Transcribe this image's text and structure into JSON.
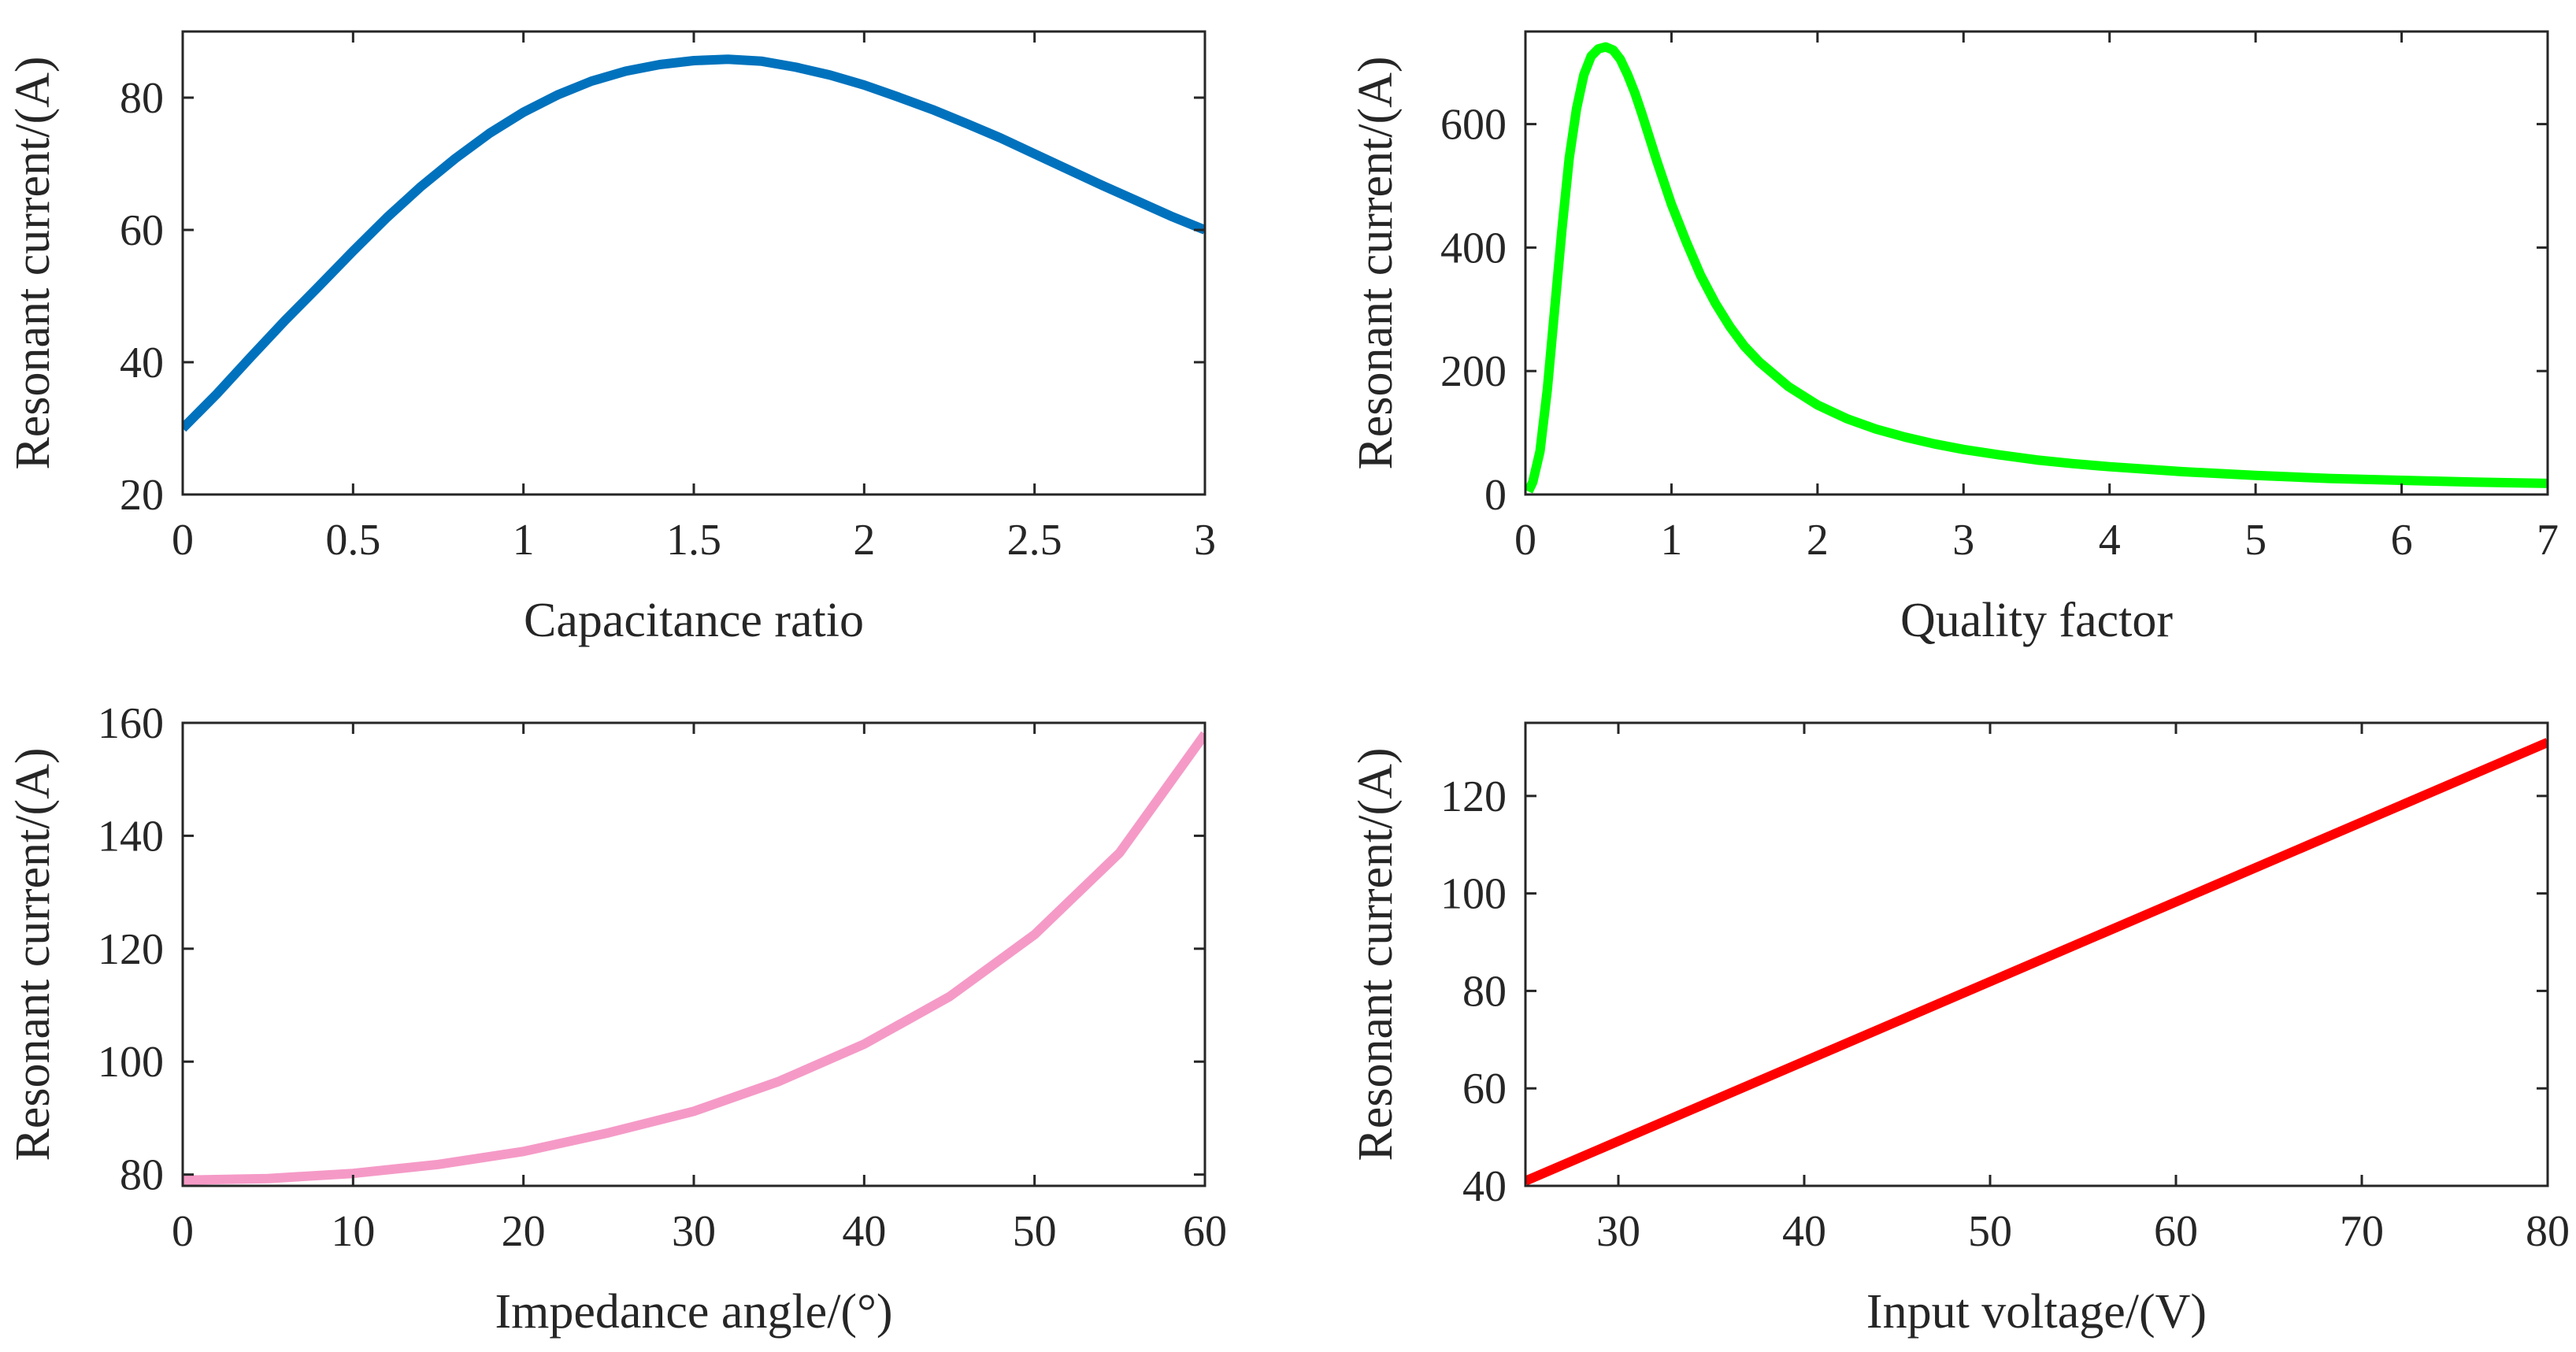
{
  "chart_data": [
    {
      "id": "capacitance",
      "type": "line",
      "title": "",
      "xlabel": "Capacitance ratio",
      "ylabel": "Resonant current/(A)",
      "xlim": [
        0,
        3
      ],
      "ylim": [
        20,
        90
      ],
      "xticks": [
        0,
        0.5,
        1,
        1.5,
        2,
        2.5,
        3
      ],
      "xtick_labels": [
        "0",
        "0.5",
        "1",
        "1.5",
        "2",
        "2.5",
        "3"
      ],
      "yticks": [
        20,
        40,
        60,
        80
      ],
      "ytick_labels": [
        "20",
        "40",
        "60",
        "80"
      ],
      "color": "#0072BD",
      "line_width": 12,
      "x": [
        0,
        0.1,
        0.2,
        0.3,
        0.4,
        0.5,
        0.6,
        0.7,
        0.8,
        0.9,
        1.0,
        1.1,
        1.2,
        1.3,
        1.4,
        1.5,
        1.6,
        1.7,
        1.8,
        1.9,
        2.0,
        2.1,
        2.2,
        2.3,
        2.4,
        2.5,
        2.6,
        2.7,
        2.8,
        2.9,
        3.0
      ],
      "y": [
        30,
        35.2,
        40.8,
        46.3,
        51.5,
        56.8,
        61.9,
        66.6,
        70.8,
        74.6,
        77.8,
        80.4,
        82.5,
        84.0,
        85.0,
        85.6,
        85.8,
        85.5,
        84.6,
        83.4,
        81.9,
        80.1,
        78.2,
        76.1,
        73.9,
        71.5,
        69.1,
        66.7,
        64.4,
        62.1,
        60.0
      ]
    },
    {
      "id": "quality",
      "type": "line",
      "title": "",
      "xlabel": "Quality factor",
      "ylabel": "Resonant current/(A)",
      "xlim": [
        0,
        7
      ],
      "ylim": [
        0,
        750
      ],
      "xticks": [
        0,
        1,
        2,
        3,
        4,
        5,
        6,
        7
      ],
      "xtick_labels": [
        "0",
        "1",
        "2",
        "3",
        "4",
        "5",
        "6",
        "7"
      ],
      "yticks": [
        0,
        200,
        400,
        600
      ],
      "ytick_labels": [
        "0",
        "200",
        "400",
        "600"
      ],
      "color": "#00FF00",
      "line_width": 12,
      "x": [
        0.02,
        0.05,
        0.1,
        0.15,
        0.2,
        0.25,
        0.3,
        0.35,
        0.4,
        0.45,
        0.5,
        0.55,
        0.6,
        0.65,
        0.7,
        0.75,
        0.8,
        0.9,
        1.0,
        1.1,
        1.2,
        1.3,
        1.4,
        1.5,
        1.6,
        1.8,
        2.0,
        2.2,
        2.4,
        2.6,
        2.8,
        3.0,
        3.25,
        3.5,
        3.75,
        4.0,
        4.5,
        5.0,
        5.5,
        6.0,
        6.5,
        7.0
      ],
      "y": [
        5,
        20,
        70,
        170,
        300,
        430,
        545,
        625,
        680,
        710,
        722,
        725,
        720,
        705,
        680,
        650,
        615,
        540,
        470,
        410,
        355,
        310,
        272,
        240,
        215,
        175,
        145,
        123,
        106,
        93,
        82,
        73,
        64,
        56,
        50,
        45,
        37,
        31,
        26,
        23,
        20,
        18
      ]
    },
    {
      "id": "impedance",
      "type": "line",
      "title": "",
      "xlabel": "Impedance angle/(°)",
      "ylabel": "Resonant current/(A)",
      "xlim": [
        0,
        60
      ],
      "ylim": [
        78,
        160
      ],
      "xticks": [
        0,
        10,
        20,
        30,
        40,
        50,
        60
      ],
      "xtick_labels": [
        "0",
        "10",
        "20",
        "30",
        "40",
        "50",
        "60"
      ],
      "yticks": [
        80,
        100,
        120,
        140,
        160
      ],
      "ytick_labels": [
        "80",
        "100",
        "120",
        "140",
        "160"
      ],
      "color": "#F59AC7",
      "line_width": 12,
      "x": [
        0,
        5,
        10,
        15,
        20,
        25,
        30,
        35,
        40,
        45,
        50,
        55,
        60
      ],
      "y": [
        79,
        79.3,
        80.2,
        81.8,
        84.1,
        87.4,
        91.2,
        96.5,
        103.1,
        111.5,
        122.5,
        137.0,
        158.0
      ]
    },
    {
      "id": "voltage",
      "type": "line",
      "title": "",
      "xlabel": "Input voltage/(V)",
      "ylabel": "Resonant current/(A)",
      "xlim": [
        25,
        80
      ],
      "ylim": [
        40,
        135
      ],
      "xticks": [
        30,
        40,
        50,
        60,
        70,
        80
      ],
      "xtick_labels": [
        "30",
        "40",
        "50",
        "60",
        "70",
        "80"
      ],
      "yticks": [
        40,
        60,
        80,
        100,
        120
      ],
      "ytick_labels": [
        "40",
        "60",
        "80",
        "100",
        "120"
      ],
      "color": "#FF0000",
      "line_width": 12,
      "x": [
        25,
        80
      ],
      "y": [
        41,
        131
      ]
    }
  ]
}
